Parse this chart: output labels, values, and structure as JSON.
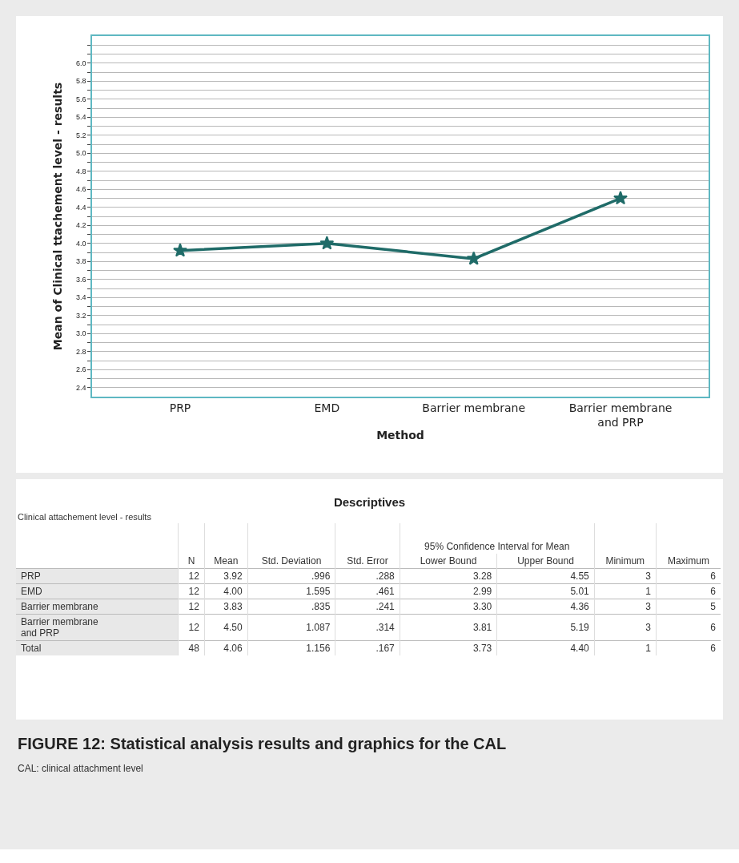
{
  "chart_data": [
    {
      "type": "line",
      "xlabel": "Method",
      "ylabel": "Mean of Clinical ttachement level - results",
      "categories": [
        "PRP",
        "EMD",
        "Barrier membrane",
        "Barrier membrane and PRP"
      ],
      "series": [
        {
          "color": "#1f6b68",
          "values": [
            3.92,
            4.0,
            3.83,
            4.5
          ]
        }
      ],
      "ylim": [
        2.3,
        6.3
      ],
      "yticks": [
        {
          "value": 2.4,
          "label": "2.4"
        },
        {
          "value": 2.5,
          "label": null
        },
        {
          "value": 2.6,
          "label": "2.6"
        },
        {
          "value": 2.7,
          "label": null
        },
        {
          "value": 2.8,
          "label": "2.8"
        },
        {
          "value": 2.9,
          "label": null
        },
        {
          "value": 3.0,
          "label": "3.0"
        },
        {
          "value": 3.1,
          "label": null
        },
        {
          "value": 3.2,
          "label": "3.2"
        },
        {
          "value": 3.3,
          "label": null
        },
        {
          "value": 3.4,
          "label": "3.4"
        },
        {
          "value": 3.5,
          "label": null
        },
        {
          "value": 3.6,
          "label": "3.6"
        },
        {
          "value": 3.7,
          "label": null
        },
        {
          "value": 3.8,
          "label": "3.8"
        },
        {
          "value": 3.9,
          "label": null
        },
        {
          "value": 4.0,
          "label": "4.0"
        },
        {
          "value": 4.1,
          "label": null
        },
        {
          "value": 4.2,
          "label": "4.2"
        },
        {
          "value": 4.3,
          "label": null
        },
        {
          "value": 4.4,
          "label": "4.4"
        },
        {
          "value": 4.5,
          "label": null
        },
        {
          "value": 4.6,
          "label": "4.6"
        },
        {
          "value": 4.7,
          "label": null
        },
        {
          "value": 4.8,
          "label": "4.8"
        },
        {
          "value": 4.9,
          "label": null
        },
        {
          "value": 5.0,
          "label": "5.0"
        },
        {
          "value": 5.1,
          "label": null
        },
        {
          "value": 5.2,
          "label": "5.2"
        },
        {
          "value": 5.3,
          "label": null
        },
        {
          "value": 5.4,
          "label": "5.4"
        },
        {
          "value": 5.5,
          "label": null
        },
        {
          "value": 5.6,
          "label": "5.6"
        },
        {
          "value": 5.7,
          "label": null
        },
        {
          "value": 5.8,
          "label": "5.8"
        },
        {
          "value": 5.9,
          "label": null
        },
        {
          "value": 6.0,
          "label": "6.0"
        },
        {
          "value": 6.1,
          "label": null
        },
        {
          "value": 6.2,
          "label": null
        }
      ],
      "grid": true,
      "marker": "star",
      "line_style": "solid"
    },
    {
      "type": "other",
      "title": "Descriptives",
      "subtitle": "Clinical attachement level - results",
      "annotations": [
        "95% Confidence Interval for Mean"
      ],
      "categories": [
        "N",
        "Mean",
        "Std. Deviation",
        "Std. Error",
        "Lower Bound",
        "Upper Bound",
        "Minimum",
        "Maximum"
      ],
      "series": [
        {
          "name": "PRP",
          "values": [
            12,
            3.92,
            0.996,
            0.288,
            3.28,
            4.55,
            3,
            6
          ],
          "value_labels": [
            "12",
            "3.92",
            ".996",
            ".288",
            "3.28",
            "4.55",
            "3",
            "6"
          ]
        },
        {
          "name": "EMD",
          "values": [
            12,
            4.0,
            1.595,
            0.461,
            2.99,
            5.01,
            1,
            6
          ],
          "value_labels": [
            "12",
            "4.00",
            "1.595",
            ".461",
            "2.99",
            "5.01",
            "1",
            "6"
          ]
        },
        {
          "name": "Barrier membrane",
          "values": [
            12,
            3.83,
            0.835,
            0.241,
            3.3,
            4.36,
            3,
            5
          ],
          "value_labels": [
            "12",
            "3.83",
            ".835",
            ".241",
            "3.30",
            "4.36",
            "3",
            "5"
          ]
        },
        {
          "name": "Barrier membrane and PRP",
          "values": [
            12,
            4.5,
            1.087,
            0.314,
            3.81,
            5.19,
            3,
            6
          ],
          "value_labels": [
            "12",
            "4.50",
            "1.087",
            ".314",
            "3.81",
            "5.19",
            "3",
            "6"
          ]
        },
        {
          "name": "Total",
          "values": [
            48,
            4.06,
            1.156,
            0.167,
            3.73,
            4.4,
            1,
            6
          ],
          "value_labels": [
            "48",
            "4.06",
            "1.156",
            ".167",
            "3.73",
            "4.40",
            "1",
            "6"
          ]
        }
      ]
    },
    {
      "type": "other",
      "title": "FIGURE 12: Statistical analysis results and graphics for the CAL",
      "subtitle": "CAL: clinical attachment level"
    }
  ]
}
